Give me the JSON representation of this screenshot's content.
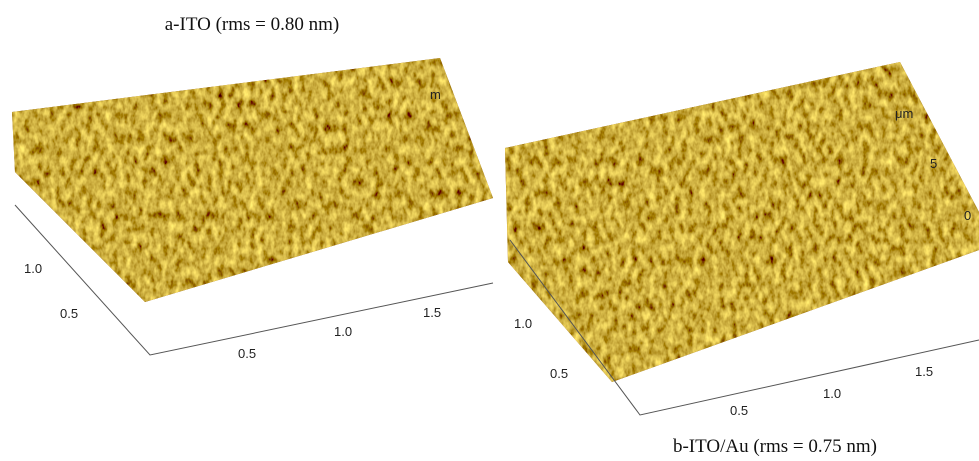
{
  "panels": [
    {
      "caption": "a-ITO (rms = 0.80 nm)",
      "axis_labels": [
        "1.0",
        "0.5",
        "0.5",
        "1.0",
        "1.5",
        "m"
      ]
    },
    {
      "caption": "b-ITO/Au (rms = 0.75 nm)",
      "axis_labels": [
        "μm",
        "5",
        "0",
        "1.0",
        "0.5",
        "0.5",
        "1.0",
        "1.5"
      ]
    }
  ]
}
